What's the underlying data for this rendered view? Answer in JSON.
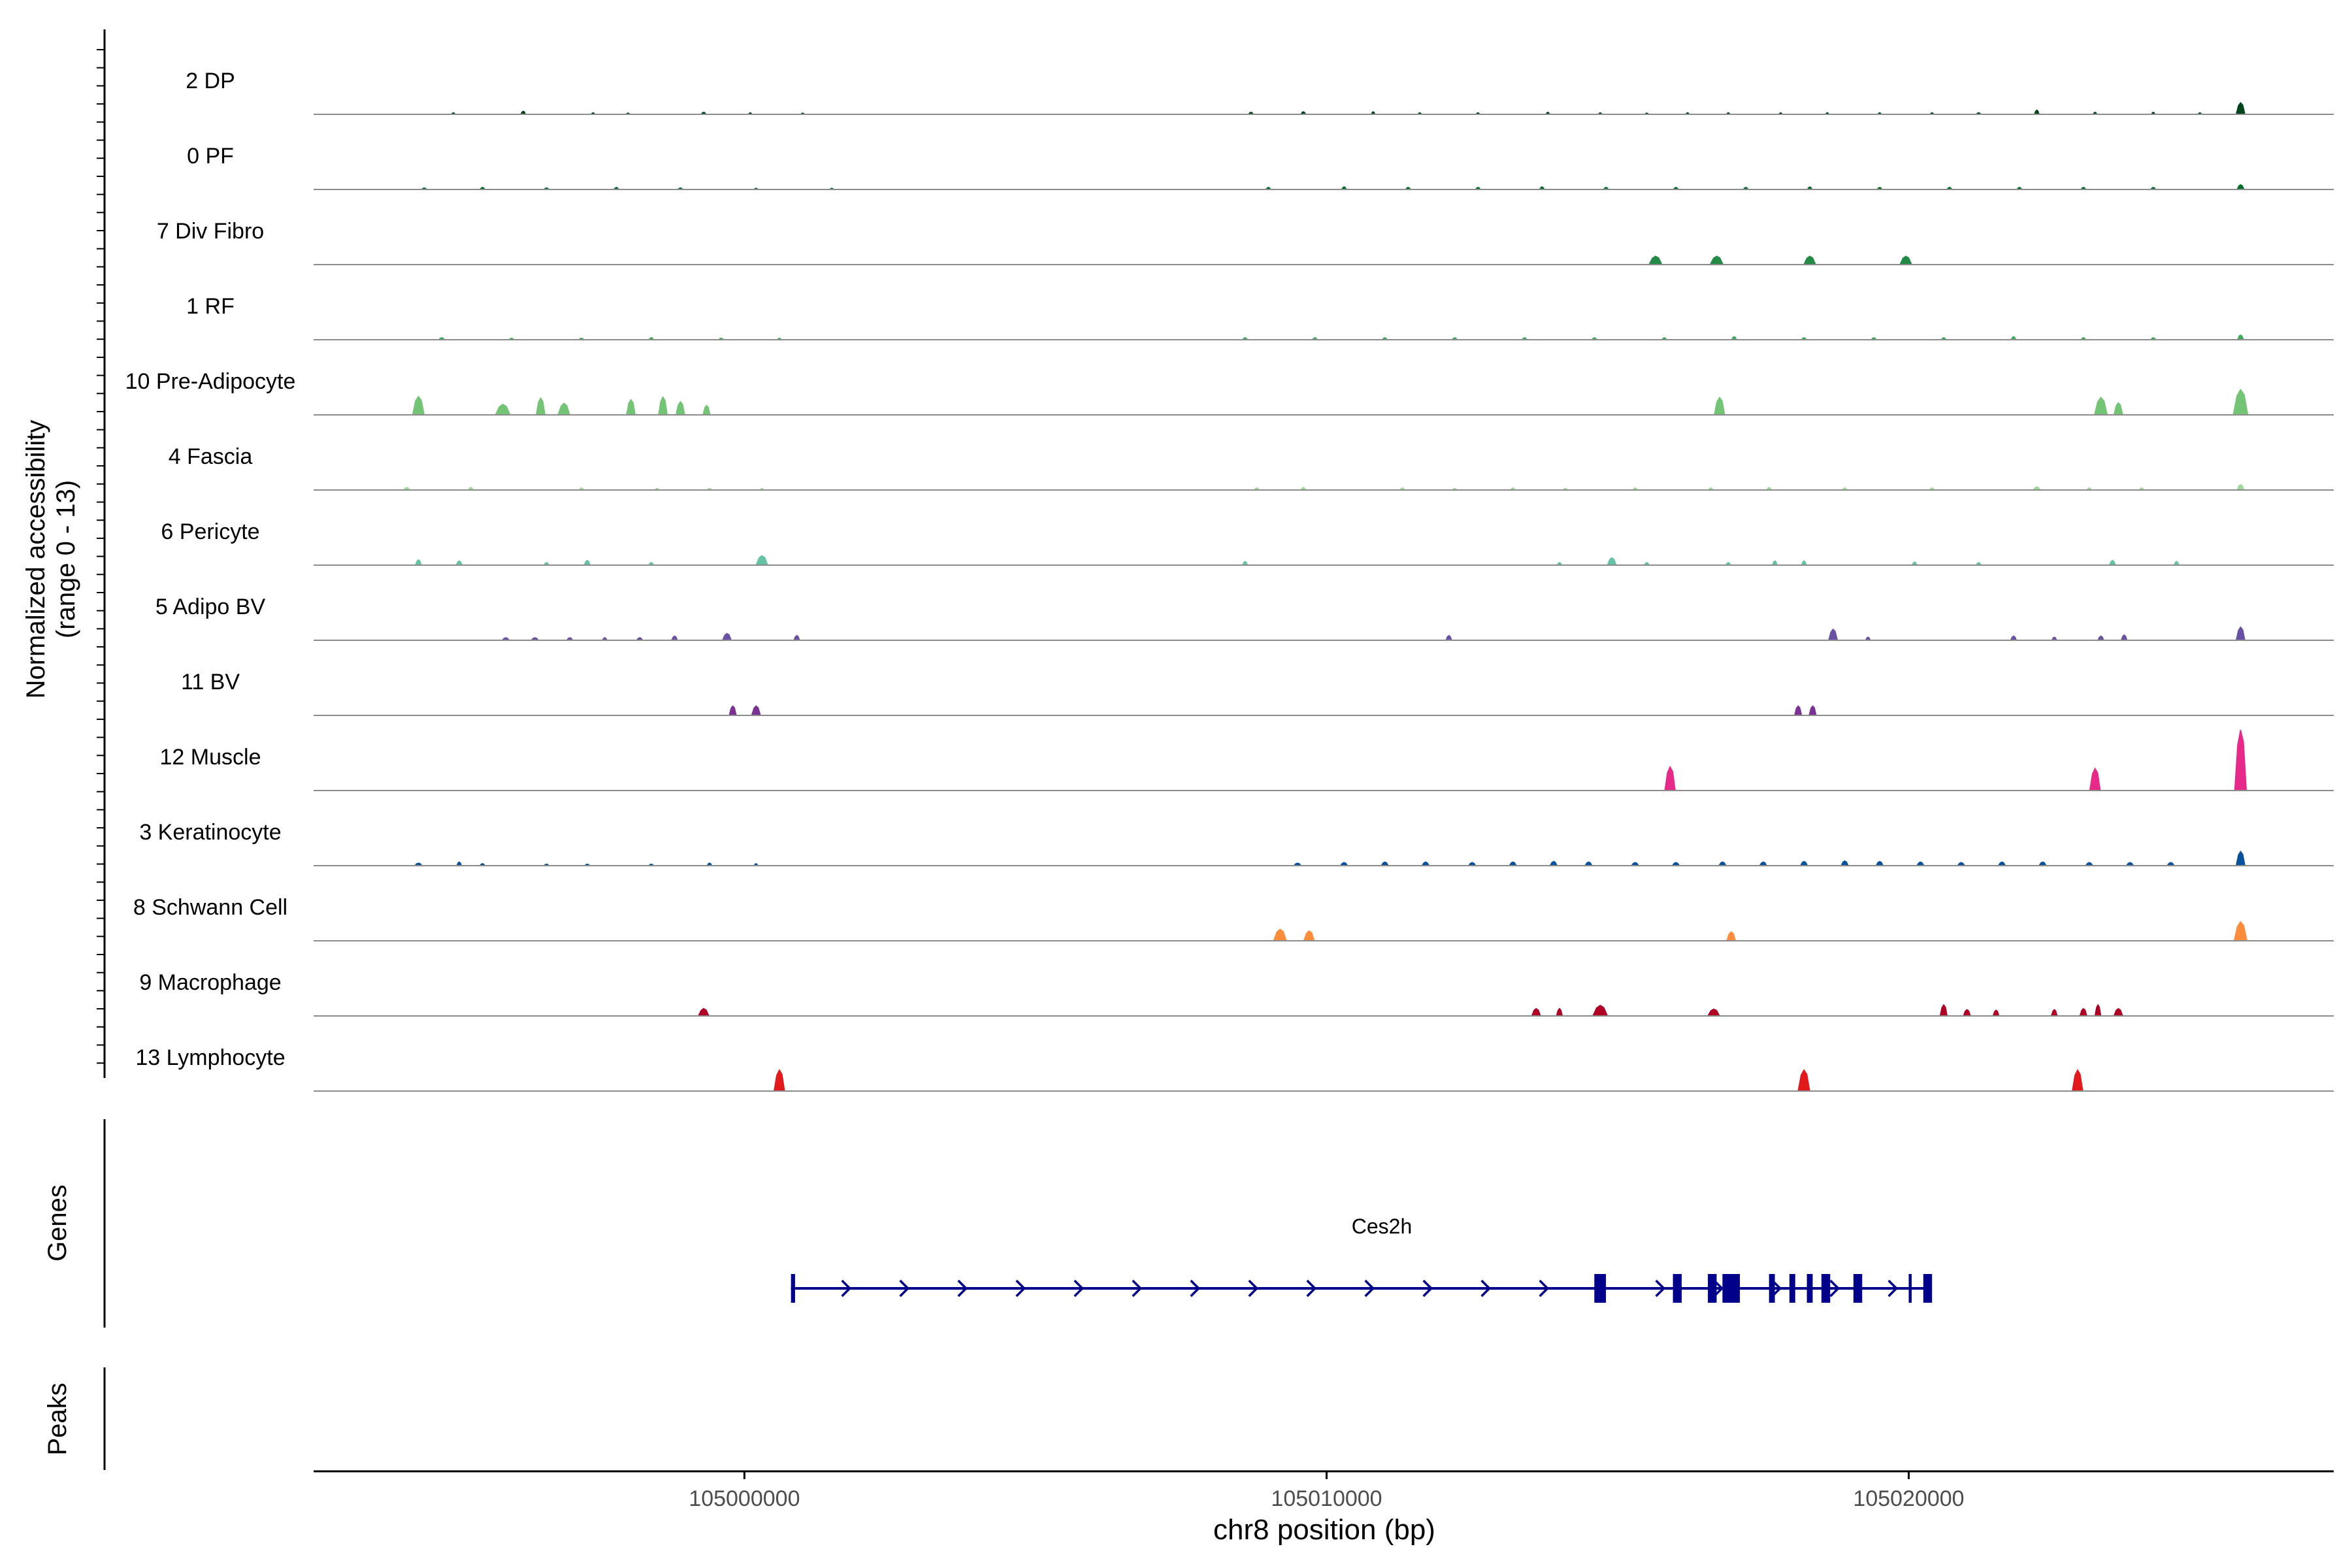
{
  "chart_data": {
    "type": "area",
    "title": "",
    "ylabel_lines": [
      "Normalized accessibility",
      "(range 0 - 13)"
    ],
    "xlabel": "chr8 position (bp)",
    "xlim": [
      104992600,
      105027300
    ],
    "x_ticks": [
      105000000,
      105010000,
      105020000
    ],
    "y_range": [
      0,
      13
    ],
    "tracks": [
      {
        "name": "2 DP",
        "color": "#00441b",
        "peaks": [
          [
            104995000,
            60,
            0.3
          ],
          [
            104996200,
            80,
            0.6
          ],
          [
            104997400,
            60,
            0.3
          ],
          [
            104998000,
            60,
            0.2
          ],
          [
            104999300,
            80,
            0.4
          ],
          [
            105000100,
            60,
            0.3
          ],
          [
            105001000,
            60,
            0.2
          ],
          [
            105008700,
            80,
            0.4
          ],
          [
            105009600,
            80,
            0.5
          ],
          [
            105010800,
            60,
            0.5
          ],
          [
            105011600,
            60,
            0.3
          ],
          [
            105012600,
            60,
            0.3
          ],
          [
            105013800,
            60,
            0.4
          ],
          [
            105014700,
            60,
            0.3
          ],
          [
            105015500,
            60,
            0.2
          ],
          [
            105016200,
            60,
            0.3
          ],
          [
            105016900,
            60,
            0.3
          ],
          [
            105017800,
            60,
            0.3
          ],
          [
            105018600,
            60,
            0.3
          ],
          [
            105019500,
            60,
            0.3
          ],
          [
            105020400,
            60,
            0.3
          ],
          [
            105021200,
            80,
            0.3
          ],
          [
            105022200,
            80,
            0.8
          ],
          [
            105023200,
            60,
            0.4
          ],
          [
            105024200,
            60,
            0.4
          ],
          [
            105025000,
            60,
            0.3
          ],
          [
            105025700,
            150,
            2.2
          ]
        ]
      },
      {
        "name": "0 PF",
        "color": "#006d2c",
        "peaks": [
          [
            104994500,
            80,
            0.3
          ],
          [
            104995500,
            80,
            0.4
          ],
          [
            104996600,
            80,
            0.3
          ],
          [
            104997800,
            80,
            0.4
          ],
          [
            104998900,
            80,
            0.3
          ],
          [
            105000200,
            60,
            0.2
          ],
          [
            105001500,
            60,
            0.2
          ],
          [
            105009000,
            80,
            0.4
          ],
          [
            105010300,
            80,
            0.5
          ],
          [
            105011400,
            80,
            0.4
          ],
          [
            105012600,
            80,
            0.4
          ],
          [
            105013700,
            80,
            0.5
          ],
          [
            105014800,
            80,
            0.4
          ],
          [
            105016000,
            80,
            0.4
          ],
          [
            105017200,
            80,
            0.4
          ],
          [
            105018300,
            80,
            0.5
          ],
          [
            105019500,
            80,
            0.4
          ],
          [
            105020700,
            80,
            0.4
          ],
          [
            105021900,
            80,
            0.4
          ],
          [
            105023000,
            80,
            0.4
          ],
          [
            105024200,
            80,
            0.4
          ],
          [
            105025700,
            120,
            0.9
          ]
        ]
      },
      {
        "name": "7 Div Fibro",
        "color": "#238b45",
        "peaks": [
          [
            105015650,
            220,
            1.6
          ],
          [
            105016700,
            220,
            1.6
          ],
          [
            105018300,
            200,
            1.6
          ],
          [
            105019950,
            200,
            1.6
          ]
        ]
      },
      {
        "name": "1 RF",
        "color": "#41ab5d",
        "peaks": [
          [
            104994800,
            100,
            0.4
          ],
          [
            104996000,
            80,
            0.3
          ],
          [
            104997200,
            80,
            0.3
          ],
          [
            104998400,
            80,
            0.4
          ],
          [
            104999600,
            80,
            0.3
          ],
          [
            105000600,
            60,
            0.3
          ],
          [
            105008600,
            80,
            0.4
          ],
          [
            105009800,
            80,
            0.4
          ],
          [
            105011000,
            80,
            0.4
          ],
          [
            105012200,
            80,
            0.4
          ],
          [
            105013400,
            80,
            0.4
          ],
          [
            105014600,
            80,
            0.4
          ],
          [
            105015800,
            80,
            0.4
          ],
          [
            105017000,
            80,
            0.6
          ],
          [
            105018200,
            80,
            0.4
          ],
          [
            105019400,
            80,
            0.4
          ],
          [
            105020600,
            80,
            0.4
          ],
          [
            105021800,
            80,
            0.6
          ],
          [
            105023000,
            80,
            0.4
          ],
          [
            105024200,
            80,
            0.4
          ],
          [
            105025700,
            100,
            0.9
          ]
        ]
      },
      {
        "name": "10 Pre-Adipocyte",
        "color": "#74c476",
        "peaks": [
          [
            104994400,
            200,
            3.5
          ],
          [
            104995850,
            250,
            2.0
          ],
          [
            104996500,
            150,
            3.2
          ],
          [
            104996900,
            200,
            2.2
          ],
          [
            104998050,
            150,
            2.9
          ],
          [
            104998600,
            150,
            3.4
          ],
          [
            104998900,
            150,
            2.5
          ],
          [
            104999350,
            120,
            1.8
          ],
          [
            105016750,
            180,
            3.3
          ],
          [
            105023300,
            220,
            3.3
          ],
          [
            105023600,
            150,
            2.3
          ],
          [
            105025700,
            250,
            4.8
          ]
        ]
      },
      {
        "name": "4 Fascia",
        "color": "#a1d99b",
        "peaks": [
          [
            104994200,
            100,
            0.5
          ],
          [
            104995300,
            80,
            0.5
          ],
          [
            104997200,
            80,
            0.4
          ],
          [
            104998500,
            80,
            0.3
          ],
          [
            104999400,
            80,
            0.3
          ],
          [
            105000300,
            60,
            0.3
          ],
          [
            105008800,
            80,
            0.4
          ],
          [
            105009600,
            80,
            0.5
          ],
          [
            105011300,
            80,
            0.4
          ],
          [
            105012200,
            80,
            0.3
          ],
          [
            105013200,
            80,
            0.4
          ],
          [
            105014100,
            80,
            0.3
          ],
          [
            105015300,
            80,
            0.4
          ],
          [
            105016600,
            80,
            0.4
          ],
          [
            105017600,
            80,
            0.5
          ],
          [
            105018900,
            80,
            0.4
          ],
          [
            105020400,
            80,
            0.4
          ],
          [
            105022200,
            120,
            0.6
          ],
          [
            105023100,
            80,
            0.4
          ],
          [
            105024000,
            80,
            0.4
          ],
          [
            105025700,
            120,
            1.0
          ]
        ]
      },
      {
        "name": "6 Pericyte",
        "color": "#66c2a4",
        "peaks": [
          [
            104994400,
            100,
            1.0
          ],
          [
            104995100,
            100,
            0.8
          ],
          [
            104996600,
            80,
            0.5
          ],
          [
            104997300,
            100,
            0.9
          ],
          [
            104998400,
            80,
            0.5
          ],
          [
            105000300,
            200,
            1.8
          ],
          [
            105008600,
            80,
            0.7
          ],
          [
            105014000,
            80,
            0.5
          ],
          [
            105014900,
            150,
            1.4
          ],
          [
            105015500,
            80,
            0.5
          ],
          [
            105016900,
            80,
            0.5
          ],
          [
            105017700,
            80,
            0.8
          ],
          [
            105018200,
            80,
            0.8
          ],
          [
            105020100,
            80,
            0.6
          ],
          [
            105021200,
            80,
            0.5
          ],
          [
            105023500,
            100,
            0.9
          ],
          [
            105024600,
            80,
            0.7
          ]
        ]
      },
      {
        "name": "5 Adipo BV",
        "color": "#6a51a3",
        "peaks": [
          [
            104995900,
            120,
            0.5
          ],
          [
            104996400,
            120,
            0.5
          ],
          [
            104997000,
            100,
            0.5
          ],
          [
            104997600,
            80,
            0.5
          ],
          [
            104998200,
            100,
            0.5
          ],
          [
            104998800,
            100,
            0.8
          ],
          [
            104999700,
            150,
            1.3
          ],
          [
            105000900,
            100,
            0.9
          ],
          [
            105012100,
            100,
            0.9
          ],
          [
            105018700,
            150,
            2.1
          ],
          [
            105019300,
            80,
            0.6
          ],
          [
            105021800,
            100,
            0.8
          ],
          [
            105022500,
            80,
            0.6
          ],
          [
            105023300,
            100,
            0.8
          ],
          [
            105023700,
            100,
            1.0
          ],
          [
            105025700,
            150,
            2.5
          ]
        ]
      },
      {
        "name": "11 BV",
        "color": "#7b3294",
        "peaks": [
          [
            104999800,
            120,
            1.8
          ],
          [
            105000200,
            150,
            1.8
          ],
          [
            105018100,
            120,
            1.8
          ],
          [
            105018350,
            120,
            1.8
          ]
        ]
      },
      {
        "name": "12 Muscle",
        "color": "#e7298a",
        "peaks": [
          [
            105015900,
            180,
            4.5
          ],
          [
            105023200,
            180,
            4.2
          ],
          [
            105025700,
            200,
            11.5
          ]
        ]
      },
      {
        "name": "3 Keratinocyte",
        "color": "#08519c",
        "peaks": [
          [
            104994400,
            120,
            0.5
          ],
          [
            104995100,
            80,
            0.7
          ],
          [
            104995500,
            80,
            0.4
          ],
          [
            104996600,
            80,
            0.3
          ],
          [
            104997300,
            80,
            0.3
          ],
          [
            104998400,
            80,
            0.3
          ],
          [
            104999400,
            80,
            0.5
          ],
          [
            105000200,
            60,
            0.4
          ],
          [
            105009500,
            120,
            0.5
          ],
          [
            105010300,
            120,
            0.6
          ],
          [
            105011000,
            120,
            0.7
          ],
          [
            105011700,
            120,
            0.7
          ],
          [
            105012500,
            120,
            0.6
          ],
          [
            105013200,
            120,
            0.7
          ],
          [
            105013900,
            120,
            0.8
          ],
          [
            105014500,
            120,
            0.7
          ],
          [
            105015300,
            120,
            0.6
          ],
          [
            105016000,
            120,
            0.6
          ],
          [
            105016800,
            120,
            0.7
          ],
          [
            105017500,
            120,
            0.7
          ],
          [
            105018200,
            120,
            0.8
          ],
          [
            105018900,
            120,
            0.9
          ],
          [
            105019500,
            120,
            0.8
          ],
          [
            105020200,
            120,
            0.7
          ],
          [
            105020900,
            120,
            0.6
          ],
          [
            105021600,
            120,
            0.7
          ],
          [
            105022300,
            120,
            0.7
          ],
          [
            105023100,
            120,
            0.6
          ],
          [
            105023800,
            120,
            0.6
          ],
          [
            105024500,
            120,
            0.6
          ],
          [
            105025700,
            150,
            2.7
          ]
        ]
      },
      {
        "name": "8 Schwann Cell",
        "color": "#fd8d3c",
        "peaks": [
          [
            105009200,
            220,
            2.2
          ],
          [
            105009700,
            180,
            1.9
          ],
          [
            105016950,
            150,
            1.7
          ],
          [
            105025700,
            220,
            3.6
          ]
        ]
      },
      {
        "name": "9 Macrophage",
        "color": "#b10026",
        "peaks": [
          [
            104999300,
            180,
            1.4
          ],
          [
            105013600,
            150,
            1.4
          ],
          [
            105014000,
            100,
            1.4
          ],
          [
            105014700,
            250,
            2.0
          ],
          [
            105016650,
            200,
            1.3
          ],
          [
            105020600,
            120,
            2.1
          ],
          [
            105021000,
            120,
            1.2
          ],
          [
            105021500,
            100,
            1.1
          ],
          [
            105022500,
            100,
            1.2
          ],
          [
            105023000,
            120,
            1.4
          ],
          [
            105023250,
            100,
            2.1
          ],
          [
            105023600,
            150,
            1.4
          ]
        ]
      },
      {
        "name": "13 Lymphocyte",
        "color": "#e31a1c",
        "peaks": [
          [
            105000600,
            180,
            4.0
          ],
          [
            105018200,
            200,
            4.0
          ],
          [
            105022900,
            180,
            4.0
          ]
        ]
      }
    ],
    "genes_label": "Genes",
    "peaks_label": "Peaks",
    "gene": {
      "name": "Ces2h",
      "strand": "+",
      "start": 105000800,
      "end": 105020400,
      "color": "#00008b",
      "exons": [
        [
          105000800,
          105000870
        ],
        [
          105014600,
          105014800
        ],
        [
          105015950,
          105016100
        ],
        [
          105016550,
          105016700
        ],
        [
          105016800,
          105017100
        ],
        [
          105017600,
          105017700
        ],
        [
          105017950,
          105018050
        ],
        [
          105018250,
          105018350
        ],
        [
          105018500,
          105018650
        ],
        [
          105019050,
          105019200
        ],
        [
          105020000,
          105020050
        ],
        [
          105020250,
          105020400
        ]
      ]
    }
  }
}
